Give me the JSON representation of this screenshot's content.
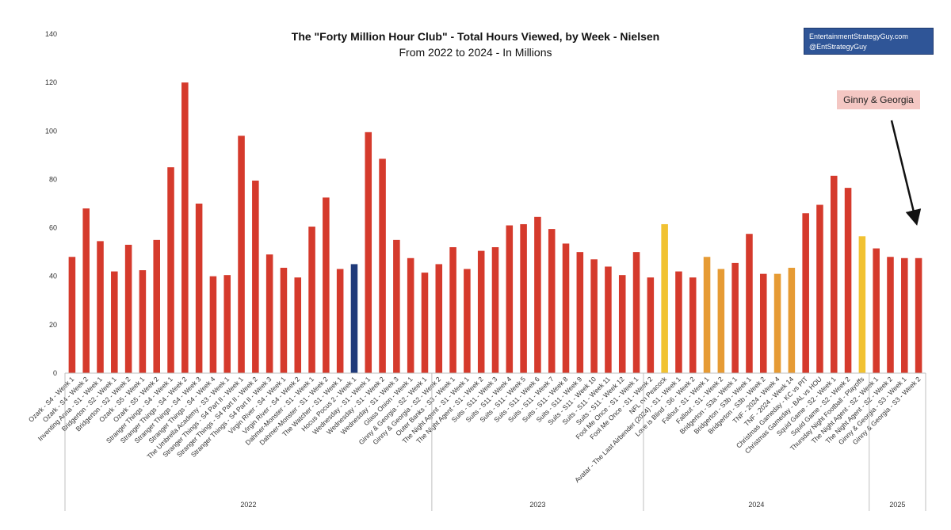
{
  "chart_data": {
    "type": "bar",
    "title": "The \"Forty Million Hour Club\" - Total Hours Viewed, by Week - Nielsen",
    "subtitle": "From 2022 to 2024 - In Millions",
    "ylim": [
      0,
      140
    ],
    "yticks": [
      0,
      20,
      40,
      60,
      80,
      100,
      120,
      140
    ],
    "grid": false,
    "categories": [
      "Ozark - S4 - Week 1",
      "Ozark - S4 - Week 2",
      "Inventing Anna - S1 - Week 1",
      "Bridgerton - S2 - Week 1",
      "Bridgerton - S2 - Week 2",
      "Ozark - S5 - Week 1",
      "Ozark - S5 - Week 2",
      "Stranger Things - S4 - Week 1",
      "Stranger Things - S4 - Week 2",
      "Stranger Things - S4 - Week 3",
      "Stranger Things - S4 - Week 4",
      "The Umbrella Academy - S3 - Week 1",
      "Stranger Things - S4 Part II - Week 1",
      "Stranger Things - S4 Part II - Week 2",
      "Stranger Things - S4 Part II - Week 3",
      "Virgin River - S4 - Week 1",
      "Virgin River - S4 - Week 2",
      "Dahmer-Monster - S1 - Week 1",
      "Dahmer-Monster - S1 - Week 2",
      "The Watcher - S1 - Week 1",
      "Hocus Pocus 2 - Week 1",
      "Wednesday - S1 - Week 1",
      "Wednesday - S1 - Week 2",
      "Wednesday - S1 - Week 3",
      "Glass Onion - Week 1",
      "Ginny & Georgia - S2 - Week 1",
      "Ginny & Georgia - S2 - Week 2",
      "Outer Banks - S3 - Week 1",
      "The Night Agent - S1 - Week 1",
      "The Night Agent - S1 - Week 2",
      "Suits - S11 - Week 3",
      "Suits - S11 - Week 4",
      "Suits - S11 - Week 5",
      "Suits - S11 - Week 6",
      "Suits - S11 - Week 7",
      "Suits - S11 - Week 8",
      "Suits - S11 - Week 9",
      "Suits - S11 - Week 10",
      "Suits - S11 - Week 11",
      "Suits - S11 - Week 12",
      "Fool Me Once - S1 - Week 1",
      "Fool Me Once - S1 - Week 2",
      "NFL on Peacock",
      "Avatar - The Last Airbender (2024) - S1 - Week 1",
      "Love is Blind - S6 - Week 2",
      "Fallout - S1 - Week 1",
      "Fallout - S1 - Week 2",
      "Bridgerton - S3a - Week 1",
      "Bridgerton - S3b - Week 1",
      "Bridgerton - S3b - Week 2",
      "TNF - 2024 - Week 4",
      "TNF - 2024 - Week 14",
      "Christmas Gameday - KC vs PIT",
      "Christmas Gameday - BAL vs HOU",
      "Squid Game - S2 - Week 1",
      "Squid Game - S2 - Week 2",
      "Thursday Night Football - Playoffs",
      "The Night Agent - S2 - Week 1",
      "The Night Agent - S2 - Week 2",
      "Ginny & Georgia - S3 - Week 1",
      "Ginny & Georgia - S3 - Week 2"
    ],
    "values": [
      48,
      68,
      54.5,
      42,
      53,
      42.5,
      55,
      85,
      120,
      70,
      40,
      40.5,
      98,
      79.5,
      49,
      43.5,
      39.5,
      60.5,
      72.5,
      43,
      45,
      99.5,
      88.5,
      55,
      47.5,
      41.5,
      45,
      52,
      43,
      50.5,
      52,
      61,
      61.5,
      64.5,
      59.5,
      53.5,
      50,
      47,
      44,
      40.5,
      50,
      39.5,
      61.5,
      42,
      39.5,
      48,
      43,
      45.5,
      57.5,
      41,
      41,
      43.5,
      66,
      69.5,
      81.5,
      76.5,
      56.5,
      51.5,
      48,
      47.5,
      47.5
    ],
    "colors": [
      "#d53a2c",
      "#d53a2c",
      "#d53a2c",
      "#d53a2c",
      "#d53a2c",
      "#d53a2c",
      "#d53a2c",
      "#d53a2c",
      "#d53a2c",
      "#d53a2c",
      "#d53a2c",
      "#d53a2c",
      "#d53a2c",
      "#d53a2c",
      "#d53a2c",
      "#d53a2c",
      "#d53a2c",
      "#d53a2c",
      "#d53a2c",
      "#d53a2c",
      "#1f3a7a",
      "#d53a2c",
      "#d53a2c",
      "#d53a2c",
      "#d53a2c",
      "#d53a2c",
      "#d53a2c",
      "#d53a2c",
      "#d53a2c",
      "#d53a2c",
      "#d53a2c",
      "#d53a2c",
      "#d53a2c",
      "#d53a2c",
      "#d53a2c",
      "#d53a2c",
      "#d53a2c",
      "#d53a2c",
      "#d53a2c",
      "#d53a2c",
      "#d53a2c",
      "#d53a2c",
      "#f1c232",
      "#d53a2c",
      "#d53a2c",
      "#e69b34",
      "#e69b34",
      "#d53a2c",
      "#d53a2c",
      "#d53a2c",
      "#e69b34",
      "#e69b34",
      "#d53a2c",
      "#d53a2c",
      "#d53a2c",
      "#d53a2c",
      "#f1c232",
      "#d53a2c",
      "#d53a2c",
      "#d53a2c",
      "#d53a2c"
    ],
    "year_groups": [
      {
        "label": "2022",
        "start": 0,
        "end": 25
      },
      {
        "label": "2023",
        "start": 26,
        "end": 40
      },
      {
        "label": "2024",
        "start": 41,
        "end": 56
      },
      {
        "label": "2025",
        "start": 57,
        "end": 60
      }
    ]
  },
  "watermark": {
    "line1": "EntertainmentStrategyGuy.com",
    "line2": "@EntStrategyGuy"
  },
  "callout": {
    "label": "Ginny & Georgia"
  }
}
